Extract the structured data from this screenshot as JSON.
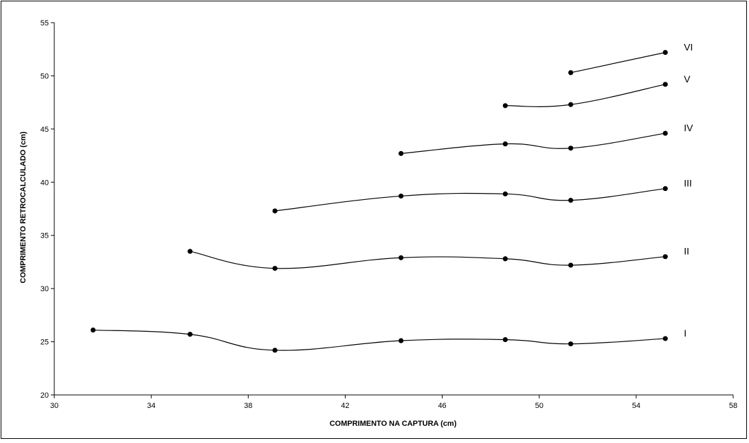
{
  "chart_data": {
    "type": "line",
    "title": "",
    "xlabel": "COMPRIMENTO NA CAPTURA (cm)",
    "ylabel": "COMPRIMENTO RETROCALCULADO (cm)",
    "xlim": [
      30,
      58
    ],
    "ylim": [
      20,
      55
    ],
    "x_ticks": [
      "30",
      "34",
      "38",
      "42",
      "46",
      "50",
      "54",
      "58"
    ],
    "y_ticks": [
      "20",
      "25",
      "30",
      "35",
      "40",
      "45",
      "50",
      "55"
    ],
    "grid": false,
    "legend": "none",
    "line_color": "#000000",
    "series": [
      {
        "name": "I",
        "x": [
          31.6,
          35.6,
          39.1,
          44.3,
          48.6,
          51.3,
          55.2
        ],
        "y": [
          26.1,
          25.7,
          24.2,
          25.1,
          25.2,
          24.8,
          25.3
        ]
      },
      {
        "name": "II",
        "x": [
          35.6,
          39.1,
          44.3,
          48.6,
          51.3,
          55.2
        ],
        "y": [
          33.5,
          31.9,
          32.9,
          32.8,
          32.2,
          33.0
        ]
      },
      {
        "name": "III",
        "x": [
          39.1,
          44.3,
          48.6,
          51.3,
          55.2
        ],
        "y": [
          37.3,
          38.7,
          38.9,
          38.3,
          39.4
        ]
      },
      {
        "name": "IV",
        "x": [
          44.3,
          48.6,
          51.3,
          55.2
        ],
        "y": [
          42.7,
          43.6,
          43.2,
          44.6
        ]
      },
      {
        "name": "V",
        "x": [
          48.6,
          51.3,
          55.2
        ],
        "y": [
          47.2,
          47.3,
          49.2
        ]
      },
      {
        "name": "VI",
        "x": [
          51.3,
          55.2
        ],
        "y": [
          50.3,
          52.2
        ]
      }
    ]
  }
}
